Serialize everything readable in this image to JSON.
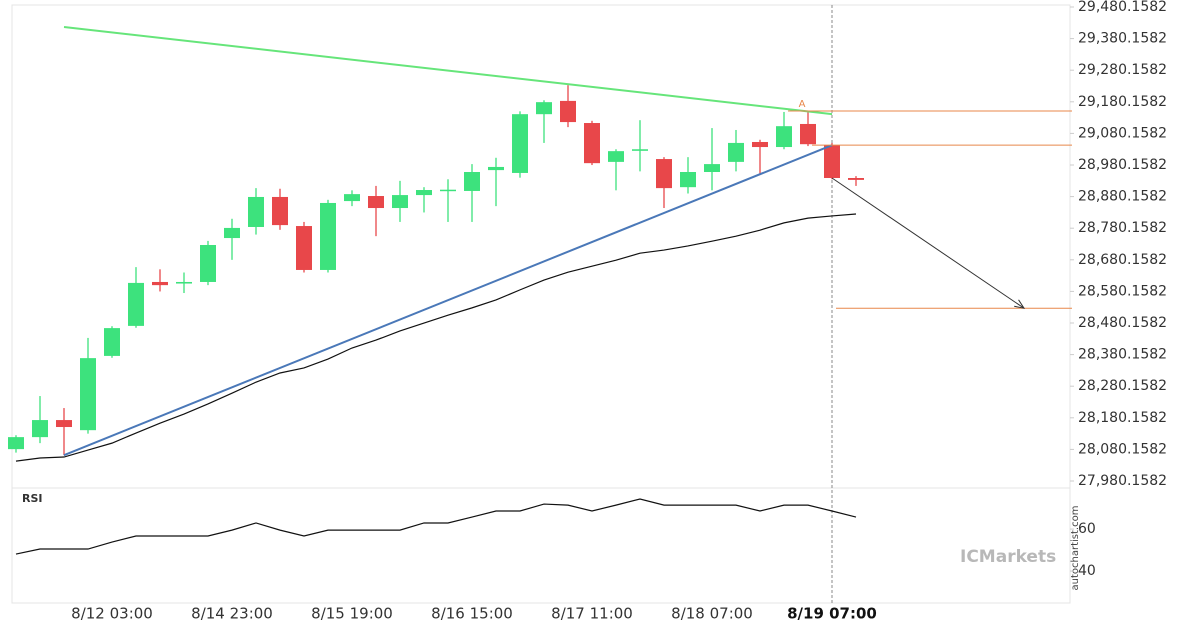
{
  "chart_data": [
    {
      "type": "candlestick",
      "categories": [
        null,
        null,
        null,
        null,
        "8/12 03:00",
        null,
        null,
        null,
        null,
        "8/14 23:00",
        null,
        null,
        null,
        null,
        "8/15 19:00",
        null,
        null,
        null,
        null,
        "8/16 15:00",
        null,
        null,
        null,
        null,
        "8/17 11:00",
        null,
        null,
        null,
        null,
        "8/18 07:00",
        null,
        null,
        null,
        null,
        "8/19 07:00",
        null
      ],
      "open": [
        28081,
        28119,
        28173,
        28141,
        28376,
        28471,
        28610,
        28605,
        28610,
        28749,
        28784,
        28879,
        28787,
        28648,
        28866,
        28882,
        28844,
        28885,
        28898,
        28898,
        28964,
        28955,
        29141,
        29183,
        29113,
        28990,
        29025,
        28999,
        28910,
        28958,
        28990,
        29053,
        29037,
        29110,
        29043,
        28939
      ],
      "high": [
        28125,
        28249,
        28211,
        28433,
        28470,
        28657,
        28650,
        28640,
        28740,
        28810,
        28907,
        28905,
        28800,
        28870,
        28900,
        28914,
        28930,
        28910,
        28935,
        28983,
        29003,
        29150,
        29185,
        29233,
        29120,
        29030,
        29122,
        29005,
        29005,
        29097,
        29091,
        29060,
        29148,
        29148,
        29050,
        28945
      ],
      "low": [
        28070,
        28100,
        28062,
        28130,
        28370,
        28465,
        28580,
        28575,
        28600,
        28680,
        28760,
        28775,
        28640,
        28640,
        28850,
        28755,
        28800,
        28830,
        28800,
        28800,
        28850,
        28940,
        29050,
        29100,
        28980,
        28900,
        28960,
        28844,
        28890,
        28900,
        28960,
        28950,
        29030,
        29040,
        28935,
        28914
      ],
      "close": [
        28119,
        28173,
        28151,
        28369,
        28464,
        28607,
        28600,
        28610,
        28727,
        28781,
        28879,
        28790,
        28648,
        28860,
        28888,
        28844,
        28885,
        28901,
        28902,
        28958,
        28974,
        29141,
        29179,
        29116,
        28986,
        29024,
        29030,
        28907,
        28958,
        28983,
        29050,
        29037,
        29103,
        29046,
        28939,
        28933
      ],
      "up_color": "#3de27d",
      "down_color": "#e8474a",
      "ma": [
        28043,
        28053,
        28056,
        28078,
        28100,
        28132,
        28163,
        28192,
        28224,
        28258,
        28293,
        28322,
        28338,
        28366,
        28401,
        28426,
        28455,
        28480,
        28505,
        28528,
        28553,
        28585,
        28616,
        28641,
        28660,
        28679,
        28701,
        28711,
        28724,
        28739,
        28755,
        28774,
        28797,
        28812,
        28819,
        28825
      ],
      "ma_color": "#111111",
      "trendlines": [
        {
          "color": "#66e57a",
          "start": [
            2,
            29417
          ],
          "end": [
            34,
            29141
          ]
        },
        {
          "color": "#4a78b8",
          "start": [
            2,
            28062
          ],
          "end": [
            34,
            29043
          ]
        }
      ],
      "levels": [
        {
          "value": 29151,
          "from": 33,
          "color": "#e8874a"
        },
        {
          "value": 29043,
          "from": 34,
          "color": "#e8874a"
        },
        {
          "value": 28527,
          "from": 35,
          "color": "#e8874a"
        }
      ],
      "arrow": {
        "from": [
          34,
          28939
        ],
        "to": [
          42,
          28527
        ],
        "color": "#333333"
      },
      "pattern_label": {
        "text": "A",
        "at": [
          33,
          29173
        ],
        "color": "#e8874a"
      },
      "highlight_index": 34,
      "ylim": [
        27980.1582,
        29480.1582
      ],
      "yticks": [
        {
          "value": 29480.1582,
          "label": "29,480.1582"
        },
        {
          "value": 29380.1582,
          "label": "29,380.1582"
        },
        {
          "value": 29280.1582,
          "label": "29,280.1582"
        },
        {
          "value": 29180.1582,
          "label": "29,180.1582"
        },
        {
          "value": 29080.1582,
          "label": "29,080.1582"
        },
        {
          "value": 28980.1582,
          "label": "28,980.1582"
        },
        {
          "value": 28880.1582,
          "label": "28,880.1582"
        },
        {
          "value": 28780.1582,
          "label": "28,780.1582"
        },
        {
          "value": 28680.1582,
          "label": "28,680.1582"
        },
        {
          "value": 28580.1582,
          "label": "28,580.1582"
        },
        {
          "value": 28480.1582,
          "label": "28,480.1582"
        },
        {
          "value": 28380.1582,
          "label": "28,380.1582"
        },
        {
          "value": 28280.1582,
          "label": "28,280.1582"
        },
        {
          "value": 28180.1582,
          "label": "28,180.1582"
        },
        {
          "value": 28080.1582,
          "label": "28,080.1582"
        },
        {
          "value": 27980.1582,
          "label": "27,980.1582"
        }
      ]
    },
    {
      "type": "line",
      "title": "RSI",
      "color": "#111111",
      "values": [
        48.1,
        50.5,
        50.5,
        50.5,
        53.8,
        56.7,
        56.7,
        56.7,
        56.7,
        59.5,
        62.9,
        59.5,
        56.7,
        59.5,
        59.5,
        59.5,
        59.5,
        62.9,
        62.9,
        65.7,
        68.6,
        68.6,
        71.9,
        71.4,
        68.6,
        71.4,
        74.3,
        71.4,
        71.4,
        71.4,
        71.4,
        68.6,
        71.4,
        71.4,
        68.6,
        65.7
      ],
      "ylim": [
        24.8,
        78.6
      ],
      "yticks": [
        60,
        40
      ]
    }
  ],
  "watermark": "autochartist.com",
  "brand": "ICMarkets"
}
